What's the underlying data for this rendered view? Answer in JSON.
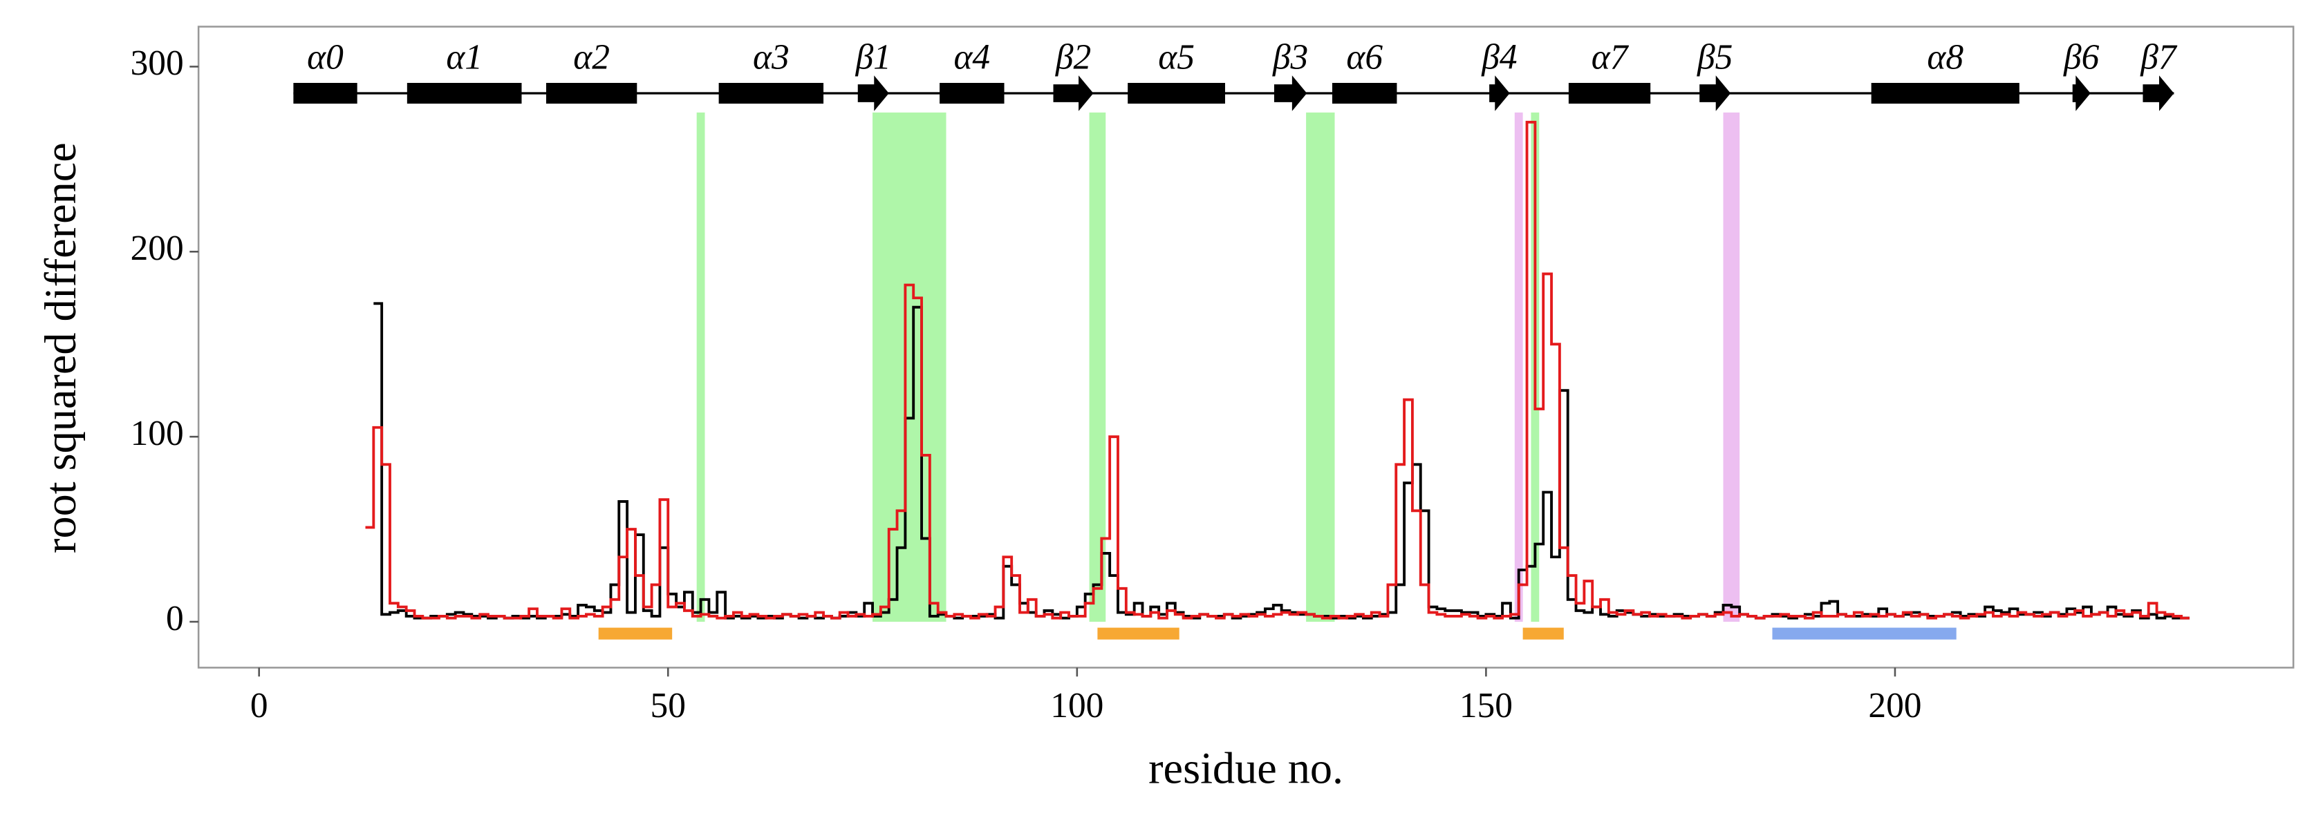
{
  "chart_data": {
    "type": "step",
    "x_label": "residue no.",
    "y_label": "root squared difference",
    "xlim": [
      -7.4,
      248.7
    ],
    "ylim": [
      -24.8,
      321.6
    ],
    "xticks": [
      0,
      50,
      100,
      150,
      200
    ],
    "yticks": [
      0,
      100,
      200,
      300
    ],
    "grid": false,
    "x": [
      13,
      14,
      15,
      16,
      17,
      18,
      19,
      20,
      21,
      22,
      23,
      24,
      25,
      26,
      27,
      28,
      29,
      30,
      31,
      32,
      33,
      34,
      35,
      36,
      37,
      38,
      39,
      40,
      41,
      42,
      43,
      44,
      45,
      46,
      47,
      48,
      49,
      50,
      51,
      52,
      53,
      54,
      55,
      56,
      57,
      58,
      59,
      60,
      61,
      62,
      63,
      64,
      65,
      66,
      67,
      68,
      69,
      70,
      71,
      72,
      73,
      74,
      75,
      76,
      77,
      78,
      79,
      80,
      81,
      82,
      83,
      84,
      85,
      86,
      87,
      88,
      89,
      90,
      91,
      92,
      93,
      94,
      95,
      96,
      97,
      98,
      99,
      100,
      101,
      102,
      103,
      104,
      105,
      106,
      107,
      108,
      109,
      110,
      111,
      112,
      113,
      114,
      115,
      116,
      117,
      118,
      119,
      120,
      121,
      122,
      123,
      124,
      125,
      126,
      127,
      128,
      129,
      130,
      131,
      132,
      133,
      134,
      135,
      136,
      137,
      138,
      139,
      140,
      141,
      142,
      143,
      144,
      145,
      146,
      147,
      148,
      149,
      150,
      151,
      152,
      153,
      154,
      155,
      156,
      157,
      158,
      159,
      160,
      161,
      162,
      163,
      164,
      165,
      166,
      167,
      168,
      169,
      170,
      171,
      172,
      173,
      174,
      175,
      176,
      177,
      178,
      179,
      180,
      181,
      182,
      183,
      184,
      185,
      186,
      187,
      188,
      189,
      190,
      191,
      192,
      193,
      194,
      195,
      196,
      197,
      198,
      199,
      200,
      201,
      202,
      203,
      204,
      205,
      206,
      207,
      208,
      209,
      210,
      211,
      212,
      213,
      214,
      215,
      216,
      217,
      218,
      219,
      220,
      221,
      222,
      223,
      224,
      225,
      226,
      227,
      228,
      229,
      230,
      231,
      232,
      233,
      234,
      235,
      236
    ],
    "series": [
      {
        "color": "#000000",
        "values": [
          null,
          172,
          4,
          5,
          6,
          3,
          2,
          2,
          3,
          3,
          4,
          5,
          4,
          3,
          3,
          2,
          3,
          2,
          3,
          2,
          3,
          2,
          3,
          3,
          4,
          3,
          9,
          8,
          6,
          5,
          20,
          65,
          5,
          47,
          6,
          3,
          40,
          15,
          8,
          16,
          5,
          12,
          5,
          16,
          2,
          3,
          2,
          3,
          2,
          3,
          2,
          4,
          3,
          2,
          3,
          2,
          3,
          2,
          3,
          5,
          3,
          10,
          3,
          5,
          12,
          40,
          110,
          170,
          45,
          3,
          4,
          3,
          2,
          3,
          3,
          3,
          4,
          2,
          30,
          20,
          10,
          5,
          3,
          6,
          4,
          2,
          3,
          8,
          15,
          20,
          37,
          25,
          5,
          4,
          10,
          3,
          8,
          4,
          10,
          5,
          3,
          2,
          4,
          3,
          3,
          4,
          2,
          3,
          4,
          5,
          7,
          9,
          6,
          5,
          4,
          4,
          3,
          3,
          2,
          3,
          2,
          3,
          2,
          3,
          4,
          5,
          20,
          75,
          85,
          60,
          8,
          7,
          6,
          6,
          5,
          5,
          3,
          4,
          3,
          10,
          2,
          28,
          30,
          42,
          70,
          35,
          125,
          12,
          6,
          5,
          8,
          4,
          3,
          6,
          5,
          4,
          3,
          4,
          3,
          3,
          4,
          3,
          3,
          4,
          3,
          5,
          9,
          8,
          4,
          3,
          2,
          3,
          4,
          3,
          2,
          3,
          4,
          3,
          10,
          11,
          4,
          3,
          3,
          4,
          3,
          7,
          4,
          3,
          4,
          5,
          4,
          3,
          3,
          4,
          5,
          3,
          4,
          3,
          8,
          6,
          5,
          7,
          4,
          4,
          5,
          3,
          5,
          4,
          7,
          5,
          8,
          4,
          5,
          8,
          4,
          3,
          6,
          2,
          4,
          2,
          3,
          2,
          2,
          2
        ]
      },
      {
        "color": "#e41a1c",
        "values": [
          51,
          105,
          85,
          10,
          8,
          6,
          3,
          2,
          2,
          3,
          2,
          3,
          3,
          2,
          4,
          3,
          3,
          2,
          2,
          3,
          7,
          3,
          3,
          2,
          7,
          2,
          3,
          4,
          3,
          8,
          12,
          35,
          50,
          25,
          8,
          20,
          66,
          8,
          10,
          6,
          3,
          4,
          3,
          2,
          3,
          5,
          3,
          4,
          3,
          2,
          3,
          4,
          3,
          4,
          3,
          5,
          3,
          2,
          5,
          3,
          4,
          3,
          4,
          8,
          50,
          60,
          182,
          175,
          90,
          10,
          5,
          3,
          4,
          3,
          2,
          4,
          3,
          8,
          35,
          25,
          5,
          12,
          3,
          4,
          2,
          5,
          3,
          3,
          10,
          18,
          45,
          100,
          18,
          5,
          4,
          3,
          5,
          2,
          6,
          4,
          2,
          3,
          4,
          3,
          2,
          4,
          3,
          4,
          3,
          4,
          3,
          4,
          5,
          4,
          5,
          4,
          3,
          2,
          3,
          2,
          3,
          4,
          3,
          5,
          3,
          20,
          85,
          120,
          60,
          20,
          5,
          4,
          3,
          3,
          4,
          3,
          2,
          3,
          2,
          3,
          4,
          20,
          270,
          115,
          188,
          150,
          40,
          25,
          10,
          22,
          8,
          12,
          5,
          4,
          6,
          4,
          5,
          3,
          4,
          3,
          3,
          2,
          3,
          4,
          3,
          4,
          5,
          3,
          4,
          3,
          2,
          3,
          3,
          4,
          3,
          3,
          2,
          5,
          3,
          3,
          4,
          3,
          5,
          3,
          4,
          3,
          4,
          3,
          5,
          3,
          4,
          2,
          3,
          4,
          3,
          2,
          3,
          4,
          5,
          3,
          4,
          3,
          5,
          4,
          3,
          4,
          5,
          3,
          4,
          6,
          3,
          4,
          5,
          3,
          6,
          4,
          5,
          3,
          10,
          5,
          4,
          3,
          2,
          2
        ]
      }
    ],
    "highlights": [
      {
        "color": "#a6f5a0",
        "regions": [
          [
            53.5,
            54.5
          ],
          [
            75,
            84
          ],
          [
            101.5,
            103.5
          ],
          [
            128,
            131.5
          ],
          [
            155.5,
            156.5
          ]
        ]
      },
      {
        "color": "#ebb8ef",
        "regions": [
          [
            153.5,
            154.5
          ],
          [
            179,
            181
          ]
        ]
      }
    ],
    "bottom_bars": [
      {
        "color": "#f7a833",
        "regions": [
          [
            41.5,
            50.5
          ],
          [
            102.5,
            112.5
          ],
          [
            154.5,
            159.5
          ]
        ]
      },
      {
        "color": "#86a9ee",
        "regions": [
          [
            185,
            207.5
          ]
        ]
      }
    ],
    "secondary_structure": {
      "helices": [
        {
          "label": "α0",
          "start": 4.2,
          "end": 12
        },
        {
          "label": "α1",
          "start": 18.1,
          "end": 32.1
        },
        {
          "label": "α2",
          "start": 35.1,
          "end": 46.2
        },
        {
          "label": "α3",
          "start": 56.2,
          "end": 69
        },
        {
          "label": "α4",
          "start": 83.2,
          "end": 91.1
        },
        {
          "label": "α5",
          "start": 106.2,
          "end": 118.1
        },
        {
          "label": "α6",
          "start": 131.2,
          "end": 139.1
        },
        {
          "label": "α7",
          "start": 160.1,
          "end": 170.1
        },
        {
          "label": "α8",
          "start": 197.1,
          "end": 215.2
        }
      ],
      "strands": [
        {
          "label": "β1",
          "start": 73.2,
          "end": 77
        },
        {
          "label": "β2",
          "start": 97.1,
          "end": 102
        },
        {
          "label": "β3",
          "start": 124.1,
          "end": 128.1
        },
        {
          "label": "β4",
          "start": 150.4,
          "end": 152.9
        },
        {
          "label": "β5",
          "start": 176.1,
          "end": 179.9
        },
        {
          "label": "β6",
          "start": 221.7,
          "end": 223.9
        },
        {
          "label": "β7",
          "start": 230.3,
          "end": 234.1
        }
      ]
    }
  }
}
